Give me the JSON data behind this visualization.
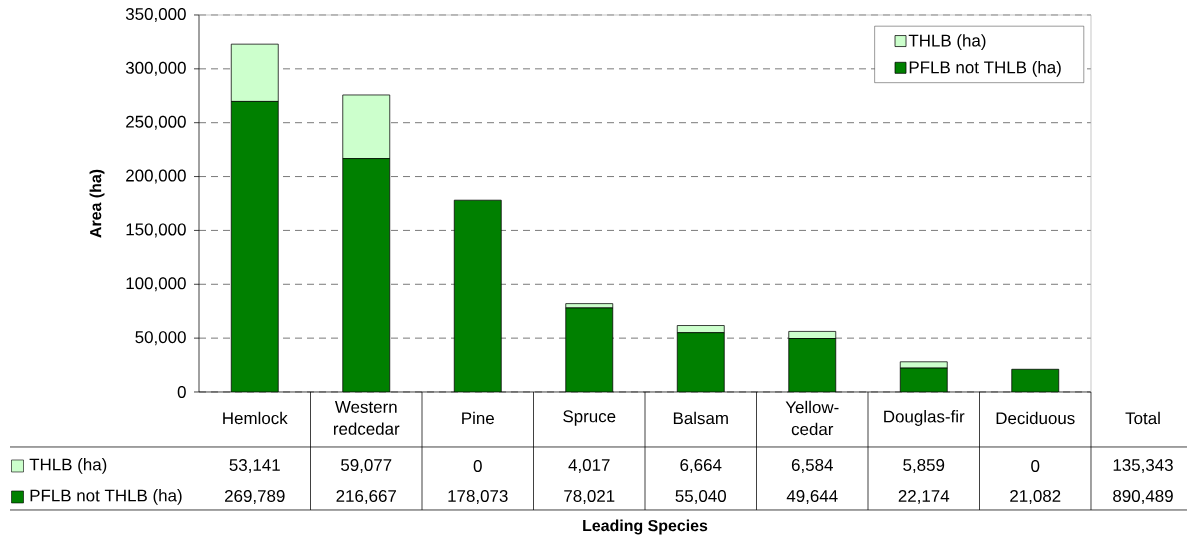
{
  "chart_data": {
    "type": "bar",
    "stacked": true,
    "categories": [
      "Hemlock",
      "Western redcedar",
      "Pine",
      "Spruce",
      "Balsam",
      "Yellow-cedar",
      "Douglas-fir",
      "Deciduous"
    ],
    "series": [
      {
        "name": "PFLB not THLB (ha)",
        "color": "#008000",
        "values": [
          269789,
          216667,
          178073,
          78021,
          55040,
          49644,
          22174,
          21082
        ],
        "value_labels": [
          "269,789",
          "216,667",
          "178,073",
          "78,021",
          "55,040",
          "49,644",
          "22,174",
          "21,082"
        ]
      },
      {
        "name": "THLB (ha)",
        "color": "#ccffcc",
        "values": [
          53141,
          59077,
          0,
          4017,
          6664,
          6584,
          5859,
          0
        ],
        "value_labels": [
          "53,141",
          "59,077",
          "0",
          "4,017",
          "6,664",
          "6,584",
          "5,859",
          "0"
        ]
      }
    ],
    "ylabel": "Area (ha)",
    "ylim": [
      0,
      350000
    ],
    "yticks": [
      0,
      {
        "value": 50000,
        "label": "50,000"
      },
      {
        "value": 100000,
        "label": "100,000"
      },
      {
        "value": 150000,
        "label": "150,000"
      },
      {
        "value": 200000,
        "label": "200,000"
      },
      {
        "value": 250000,
        "label": "250,000"
      },
      {
        "value": 300000,
        "label": "300,000"
      },
      {
        "value": 350000,
        "label": "350,000"
      }
    ],
    "grid": "y",
    "legend": "top right",
    "annotations": [
      "Total",
      "135,343",
      "890,489",
      "Leading Species"
    ]
  }
}
